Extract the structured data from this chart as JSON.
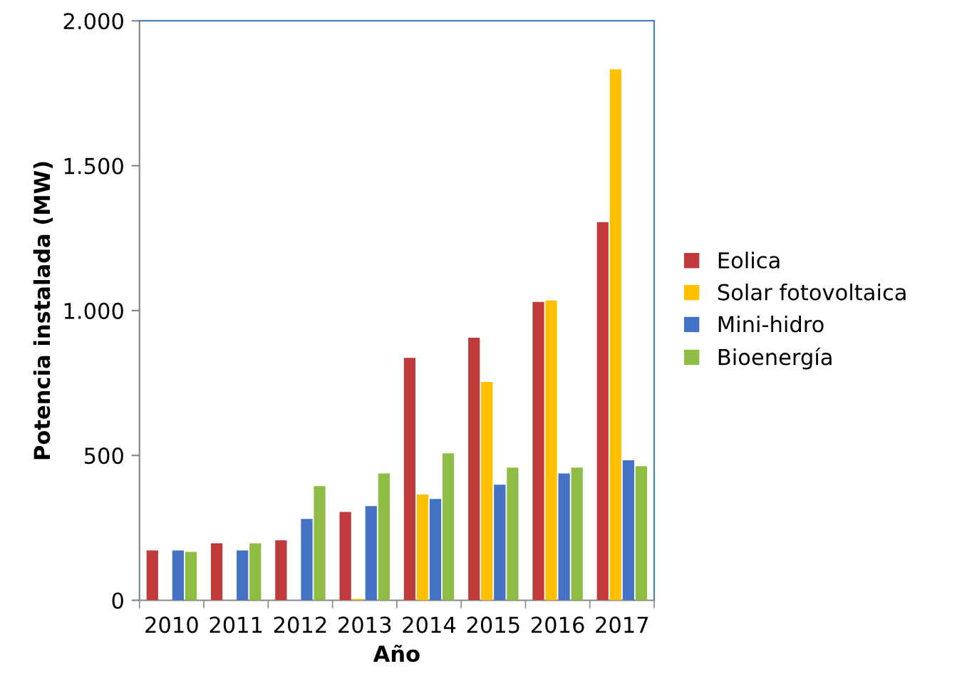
{
  "chart_data": {
    "type": "bar",
    "xlabel": "Año",
    "ylabel": "Potencia instalada (MW)",
    "categories": [
      "2010",
      "2011",
      "2012",
      "2013",
      "2014",
      "2015",
      "2016",
      "2017"
    ],
    "series": [
      {
        "name": "Eolica",
        "color": "#c0393b",
        "values": [
          172,
          197,
          207,
          305,
          837,
          906,
          1030,
          1305
        ]
      },
      {
        "name": "Solar fotovoltaica",
        "color": "#ffc000",
        "values": [
          0,
          0,
          0,
          5,
          365,
          754,
          1035,
          1833
        ]
      },
      {
        "name": "Mini-hidro",
        "color": "#4472c4",
        "values": [
          172,
          172,
          281,
          325,
          350,
          399,
          438,
          483
        ]
      },
      {
        "name": "Bioenergía",
        "color": "#8fbc45",
        "values": [
          167,
          197,
          394,
          438,
          507,
          458,
          458,
          463
        ]
      }
    ],
    "ylim": [
      0,
      2000
    ],
    "yticks": [
      {
        "value": 0,
        "label": "0"
      },
      {
        "value": 500,
        "label": "500"
      },
      {
        "value": 1000,
        "label": "1.000"
      },
      {
        "value": 1500,
        "label": "1.500"
      },
      {
        "value": 2000,
        "label": "2.000"
      }
    ],
    "grid": false,
    "legend": "right"
  }
}
